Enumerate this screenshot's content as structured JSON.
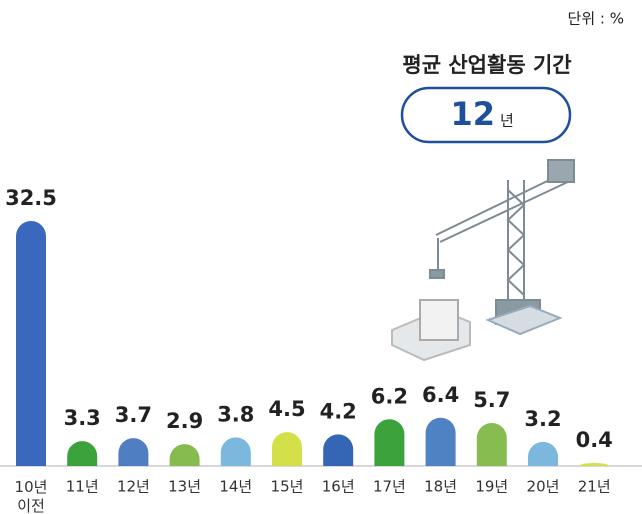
{
  "unit_label": "단위 : %",
  "average": {
    "title": "평균 산업활동 기간",
    "value": 12,
    "unit": "년"
  },
  "chart_data": {
    "type": "bar",
    "categories": [
      "10년 이전",
      "11년",
      "12년",
      "13년",
      "14년",
      "15년",
      "16년",
      "17년",
      "18년",
      "19년",
      "20년",
      "21년"
    ],
    "values": [
      32.5,
      3.3,
      3.7,
      2.9,
      3.8,
      4.5,
      4.2,
      6.2,
      6.4,
      5.7,
      3.2,
      0.4
    ],
    "colors": [
      "#3a68bd",
      "#3ba23c",
      "#4f7ec2",
      "#85bb4f",
      "#7cb8de",
      "#d3e04a",
      "#3566b5",
      "#3ba23c",
      "#4f82c2",
      "#86bc50",
      "#7cb8de",
      "#d3e04a"
    ]
  }
}
